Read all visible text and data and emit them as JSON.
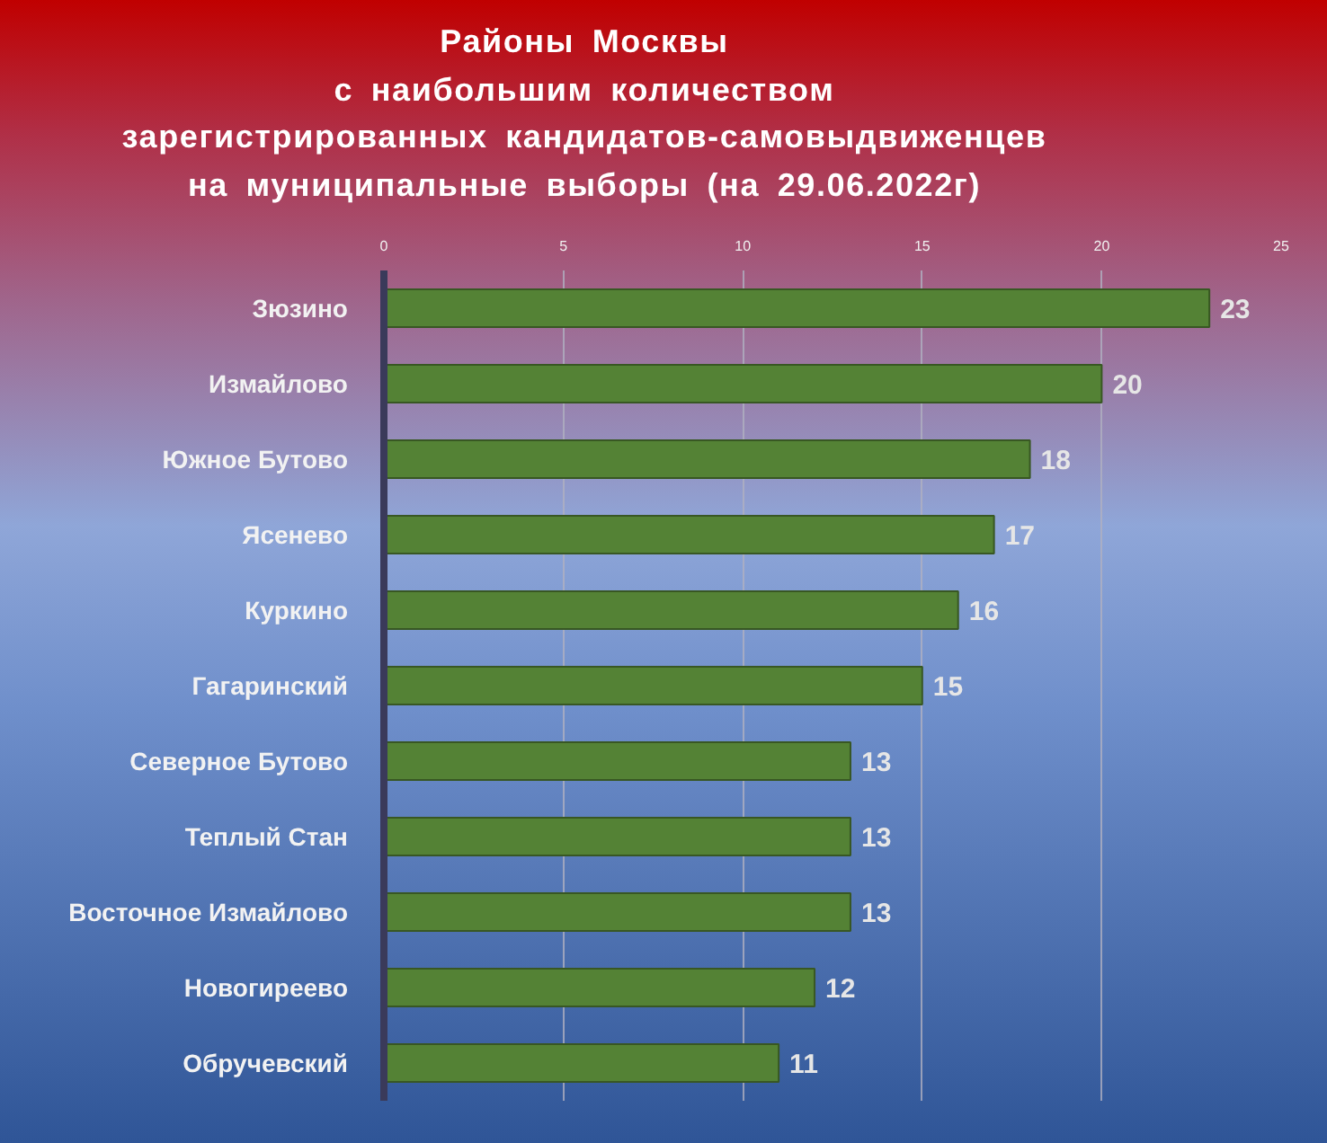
{
  "chart_data": {
    "type": "bar",
    "orientation": "horizontal",
    "title": "Районы Москвы\nс наибольшим количеством\nзарегистрированных кандидатов-самовыдвиженцев\nна муниципальные выборы (на 29.06.2022г)",
    "categories": [
      "Зюзино",
      "Измайлово",
      "Южное Бутово",
      "Ясенево",
      "Куркино",
      "Гагаринский",
      "Северное Бутово",
      "Теплый Стан",
      "Восточное Измайлово",
      "Новогиреево",
      "Обручевский"
    ],
    "values": [
      23,
      20,
      18,
      17,
      16,
      15,
      13,
      13,
      13,
      12,
      11
    ],
    "color": "#548235",
    "xlim": [
      0,
      25
    ],
    "xticks": [
      0,
      5,
      10,
      15,
      20,
      25
    ],
    "grid": "x",
    "data_labels": true
  }
}
